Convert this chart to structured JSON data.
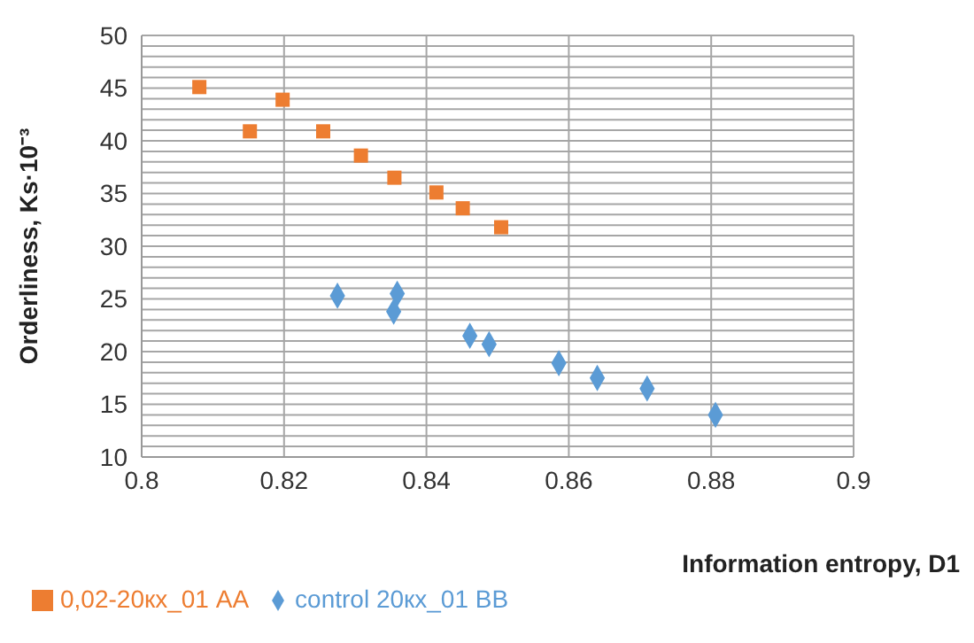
{
  "chart_data": {
    "type": "scatter",
    "xlabel": "Information entropy, D1",
    "ylabel": "Orderliness, Ks·10⁻³",
    "xlim": [
      0.8,
      0.9
    ],
    "xticks": [
      0.8,
      0.82,
      0.84,
      0.86,
      0.88,
      0.9
    ],
    "ylim": [
      10,
      50
    ],
    "yticks": [
      10,
      {
        "value": 11,
        "label": null
      },
      {
        "value": 12,
        "label": null
      },
      {
        "value": 13,
        "label": null
      },
      {
        "value": 14,
        "label": null
      },
      15,
      {
        "value": 16,
        "label": null
      },
      {
        "value": 17,
        "label": null
      },
      {
        "value": 18,
        "label": null
      },
      {
        "value": 19,
        "label": null
      },
      20,
      {
        "value": 21,
        "label": null
      },
      {
        "value": 22,
        "label": null
      },
      {
        "value": 23,
        "label": null
      },
      {
        "value": 24,
        "label": null
      },
      25,
      {
        "value": 26,
        "label": null
      },
      {
        "value": 27,
        "label": null
      },
      {
        "value": 28,
        "label": null
      },
      {
        "value": 29,
        "label": null
      },
      30,
      {
        "value": 31,
        "label": null
      },
      {
        "value": 32,
        "label": null
      },
      {
        "value": 33,
        "label": null
      },
      {
        "value": 34,
        "label": null
      },
      35,
      {
        "value": 36,
        "label": null
      },
      {
        "value": 37,
        "label": null
      },
      {
        "value": 38,
        "label": null
      },
      {
        "value": 39,
        "label": null
      },
      40,
      {
        "value": 41,
        "label": null
      },
      {
        "value": 42,
        "label": null
      },
      {
        "value": 43,
        "label": null
      },
      {
        "value": 44,
        "label": null
      },
      45,
      {
        "value": 46,
        "label": null
      },
      {
        "value": 47,
        "label": null
      },
      {
        "value": 48,
        "label": null
      },
      {
        "value": 49,
        "label": null
      },
      50
    ],
    "grid": true,
    "legend": "bottom left",
    "series": [
      {
        "name": "control 20кх_01 BB",
        "color": "#5b9bd5",
        "marker": "diamond",
        "x": [
          0.8275,
          0.8359,
          0.8354,
          0.8461,
          0.8488,
          0.8586,
          0.864,
          0.871,
          0.8806
        ],
        "values": [
          25.3,
          25.5,
          23.8,
          21.5,
          20.7,
          18.9,
          17.5,
          16.5,
          14.0
        ]
      },
      {
        "name": "0,02-20кх_01  AA",
        "color": "#ed7d31",
        "marker": "square",
        "x": [
          0.8081,
          0.8152,
          0.8198,
          0.8255,
          0.8308,
          0.8355,
          0.8414,
          0.8451,
          0.8505
        ],
        "values": [
          45.1,
          40.9,
          43.9,
          40.9,
          38.6,
          36.5,
          35.1,
          33.6,
          31.8
        ]
      }
    ]
  }
}
